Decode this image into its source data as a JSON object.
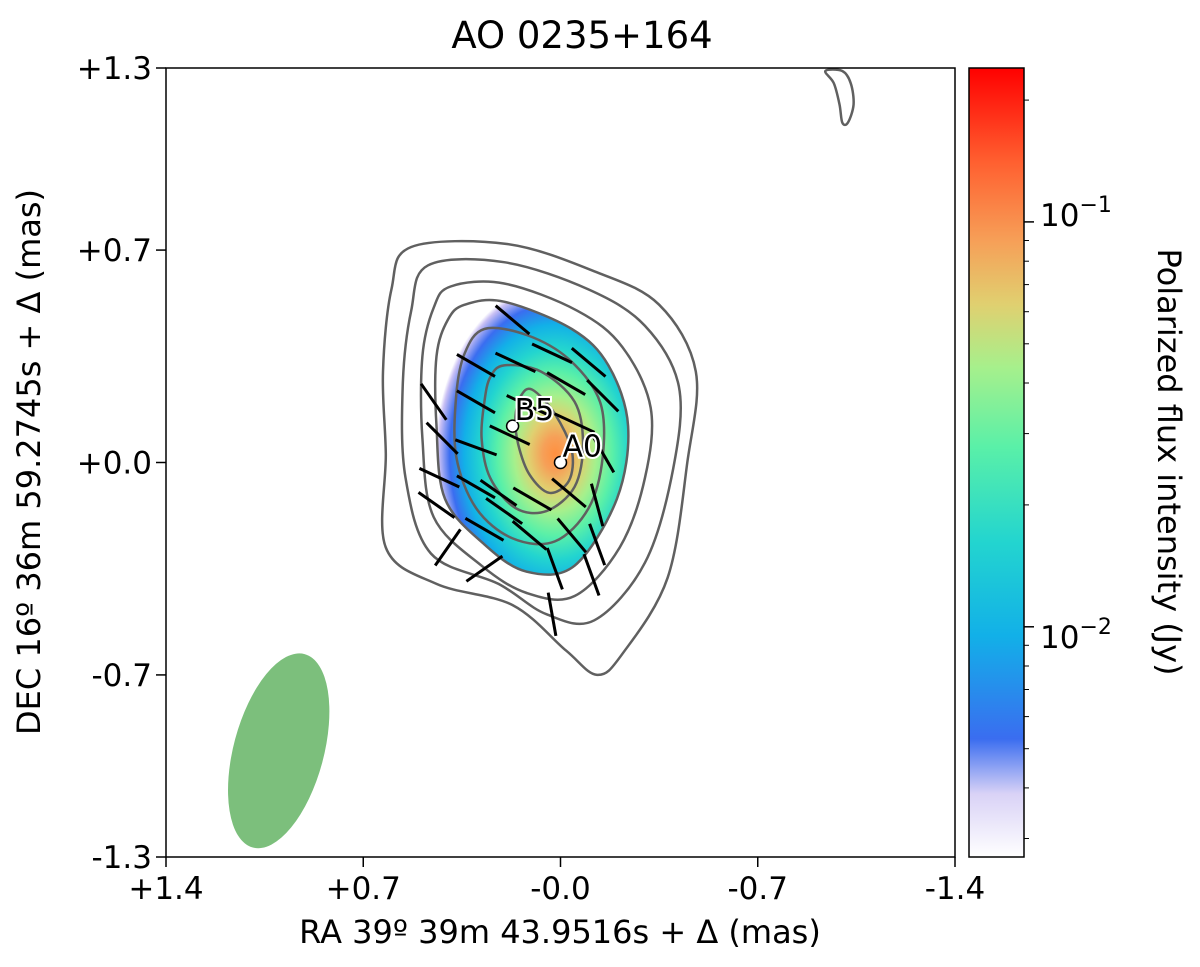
{
  "chart_data": {
    "type": "heatmap",
    "title": "AO 0235+164",
    "xlabel": "RA 39º 39m 43.9516s + Δ (mas)",
    "ylabel": "DEC 16º 36m 59.2745s + Δ (mas)",
    "xlim": [
      1.4,
      -1.4
    ],
    "ylim": [
      -1.3,
      1.3
    ],
    "x_ticks": [
      1.4,
      0.7,
      0.0,
      -0.7,
      -1.4
    ],
    "x_tick_labels": [
      "+1.4",
      "+0.7",
      "-0.0",
      "-0.7",
      "-1.4"
    ],
    "y_ticks": [
      1.3,
      0.7,
      0.0,
      -0.7,
      -1.3
    ],
    "y_tick_labels": [
      "+1.3",
      "+0.7",
      "+0.0",
      "-0.7",
      "-1.3"
    ],
    "grid": false,
    "colorbar": {
      "label": "Polarized flux intensity (Jy)",
      "scale": "log",
      "range": [
        0.0027,
        0.24
      ],
      "major_ticks": [
        0.01,
        0.1
      ],
      "major_tick_labels": [
        "10^-2",
        "10^-1"
      ],
      "colormap": [
        "#ffffff",
        "#d0c8f5",
        "#3a6df0",
        "#12b0e8",
        "#23d5cf",
        "#5af0a8",
        "#a6f08c",
        "#e0d070",
        "#f6a058",
        "#ff6030",
        "#ff0000"
      ]
    },
    "polarized_peak": {
      "x": 0.04,
      "y": 0.03,
      "value": 0.1
    },
    "stokes_i_contours": [
      {
        "level": 1,
        "points": [
          [
            0.53,
            0.71
          ],
          [
            0.19,
            0.72
          ],
          [
            -0.12,
            0.63
          ],
          [
            -0.35,
            0.52
          ],
          [
            -0.48,
            0.3
          ],
          [
            -0.45,
            0.0
          ],
          [
            -0.38,
            -0.38
          ],
          [
            -0.22,
            -0.63
          ],
          [
            -0.13,
            -0.7
          ],
          [
            -0.02,
            -0.62
          ],
          [
            0.17,
            -0.47
          ],
          [
            0.44,
            -0.4
          ],
          [
            0.62,
            -0.28
          ],
          [
            0.62,
            0.03
          ],
          [
            0.63,
            0.3
          ],
          [
            0.6,
            0.57
          ]
        ]
      },
      {
        "level": 2,
        "points": [
          [
            0.47,
            0.65
          ],
          [
            0.2,
            0.66
          ],
          [
            -0.1,
            0.57
          ],
          [
            -0.3,
            0.45
          ],
          [
            -0.42,
            0.25
          ],
          [
            -0.4,
            -0.02
          ],
          [
            -0.3,
            -0.33
          ],
          [
            -0.12,
            -0.52
          ],
          [
            0.05,
            -0.5
          ],
          [
            0.22,
            -0.4
          ],
          [
            0.46,
            -0.3
          ],
          [
            0.55,
            -0.05
          ],
          [
            0.56,
            0.25
          ],
          [
            0.53,
            0.5
          ]
        ]
      },
      {
        "level": 3,
        "points": [
          [
            0.39,
            0.58
          ],
          [
            0.2,
            0.59
          ],
          [
            -0.06,
            0.5
          ],
          [
            -0.22,
            0.38
          ],
          [
            -0.32,
            0.18
          ],
          [
            -0.3,
            -0.05
          ],
          [
            -0.21,
            -0.28
          ],
          [
            -0.05,
            -0.44
          ],
          [
            0.12,
            -0.43
          ],
          [
            0.28,
            -0.34
          ],
          [
            0.45,
            -0.18
          ],
          [
            0.49,
            0.08
          ],
          [
            0.49,
            0.35
          ],
          [
            0.45,
            0.51
          ]
        ]
      },
      {
        "level": 4,
        "points": [
          [
            0.34,
            0.52
          ],
          [
            0.2,
            0.53
          ],
          [
            -0.04,
            0.44
          ],
          [
            -0.17,
            0.32
          ],
          [
            -0.24,
            0.12
          ],
          [
            -0.2,
            -0.12
          ],
          [
            -0.05,
            -0.34
          ],
          [
            0.12,
            -0.36
          ],
          [
            0.27,
            -0.27
          ],
          [
            0.41,
            -0.12
          ],
          [
            0.44,
            0.12
          ],
          [
            0.44,
            0.35
          ],
          [
            0.4,
            0.47
          ]
        ]
      },
      {
        "level": 5,
        "points": [
          [
            0.27,
            0.44
          ],
          [
            0.12,
            0.42
          ],
          [
            -0.03,
            0.34
          ],
          [
            -0.14,
            0.2
          ],
          [
            -0.15,
            0.02
          ],
          [
            -0.1,
            -0.15
          ],
          [
            0.02,
            -0.26
          ],
          [
            0.17,
            -0.25
          ],
          [
            0.3,
            -0.15
          ],
          [
            0.37,
            0.02
          ],
          [
            0.37,
            0.22
          ],
          [
            0.34,
            0.36
          ]
        ]
      },
      {
        "level": 6,
        "points": [
          [
            0.2,
            0.32
          ],
          [
            0.07,
            0.3
          ],
          [
            -0.05,
            0.2
          ],
          [
            -0.08,
            0.06
          ],
          [
            -0.05,
            -0.08
          ],
          [
            0.05,
            -0.16
          ],
          [
            0.16,
            -0.15
          ],
          [
            0.25,
            -0.05
          ],
          [
            0.28,
            0.08
          ],
          [
            0.27,
            0.2
          ],
          [
            0.25,
            0.28
          ]
        ]
      },
      {
        "level": 7,
        "points": [
          [
            0.1,
            0.24
          ],
          [
            0.02,
            0.16
          ],
          [
            -0.04,
            0.04
          ],
          [
            -0.03,
            -0.06
          ],
          [
            0.04,
            -0.1
          ],
          [
            0.11,
            -0.04
          ],
          [
            0.15,
            0.06
          ],
          [
            0.16,
            0.15
          ],
          [
            0.14,
            0.22
          ]
        ]
      },
      {
        "level": 1,
        "points": [
          [
            -0.94,
            1.29
          ],
          [
            -0.97,
            1.25
          ],
          [
            -0.99,
            1.18
          ],
          [
            -1.0,
            1.12
          ],
          [
            -1.02,
            1.12
          ],
          [
            -1.04,
            1.18
          ],
          [
            -1.03,
            1.25
          ],
          [
            -1.0,
            1.29
          ]
        ]
      }
    ],
    "evpa_vectors": [
      {
        "x": 0.17,
        "y": 0.47,
        "angle": 40
      },
      {
        "x": 0.03,
        "y": 0.36,
        "angle": 25
      },
      {
        "x": -0.1,
        "y": 0.33,
        "angle": 40
      },
      {
        "x": 0.45,
        "y": 0.2,
        "angle": 55
      },
      {
        "x": 0.3,
        "y": 0.32,
        "angle": 30
      },
      {
        "x": 0.16,
        "y": 0.33,
        "angle": 25
      },
      {
        "x": -0.02,
        "y": 0.26,
        "angle": 30
      },
      {
        "x": -0.15,
        "y": 0.22,
        "angle": 45
      },
      {
        "x": 0.42,
        "y": 0.08,
        "angle": 45
      },
      {
        "x": 0.3,
        "y": 0.2,
        "angle": 30
      },
      {
        "x": 0.12,
        "y": 0.19,
        "angle": 25
      },
      {
        "x": -0.05,
        "y": 0.13,
        "angle": 25
      },
      {
        "x": 0.43,
        "y": -0.05,
        "angle": 25
      },
      {
        "x": 0.3,
        "y": 0.05,
        "angle": 20
      },
      {
        "x": 0.18,
        "y": 0.09,
        "angle": 25
      },
      {
        "x": -0.15,
        "y": 0.03,
        "angle": 60
      },
      {
        "x": 0.44,
        "y": -0.14,
        "angle": 35
      },
      {
        "x": 0.3,
        "y": -0.08,
        "angle": 30
      },
      {
        "x": 0.22,
        "y": -0.1,
        "angle": 35
      },
      {
        "x": 0.1,
        "y": -0.12,
        "angle": 30
      },
      {
        "x": -0.03,
        "y": -0.1,
        "angle": 40
      },
      {
        "x": -0.13,
        "y": -0.14,
        "angle": 75
      },
      {
        "x": 0.4,
        "y": -0.28,
        "angle": -55
      },
      {
        "x": 0.27,
        "y": -0.22,
        "angle": 30
      },
      {
        "x": 0.11,
        "y": -0.24,
        "angle": 40
      },
      {
        "x": -0.04,
        "y": -0.24,
        "angle": 50
      },
      {
        "x": -0.13,
        "y": -0.27,
        "angle": 70
      },
      {
        "x": 0.27,
        "y": -0.35,
        "angle": -35
      },
      {
        "x": 0.02,
        "y": -0.35,
        "angle": 70
      },
      {
        "x": -0.11,
        "y": -0.37,
        "angle": 70
      },
      {
        "x": 0.03,
        "y": -0.5,
        "angle": 80
      },
      {
        "x": 0.2,
        "y": -0.16,
        "angle": 35
      }
    ],
    "components": [
      {
        "name": "B5",
        "x": 0.17,
        "y": 0.12
      },
      {
        "name": "A0",
        "x": 0.0,
        "y": 0.0
      }
    ],
    "beam": {
      "x": 1.0,
      "y": -0.95,
      "major": 0.33,
      "minor": 0.16,
      "pa_deg": 15,
      "color": "#7cbf7c"
    },
    "contour_color": "#606060",
    "vector_color": "#000000"
  }
}
